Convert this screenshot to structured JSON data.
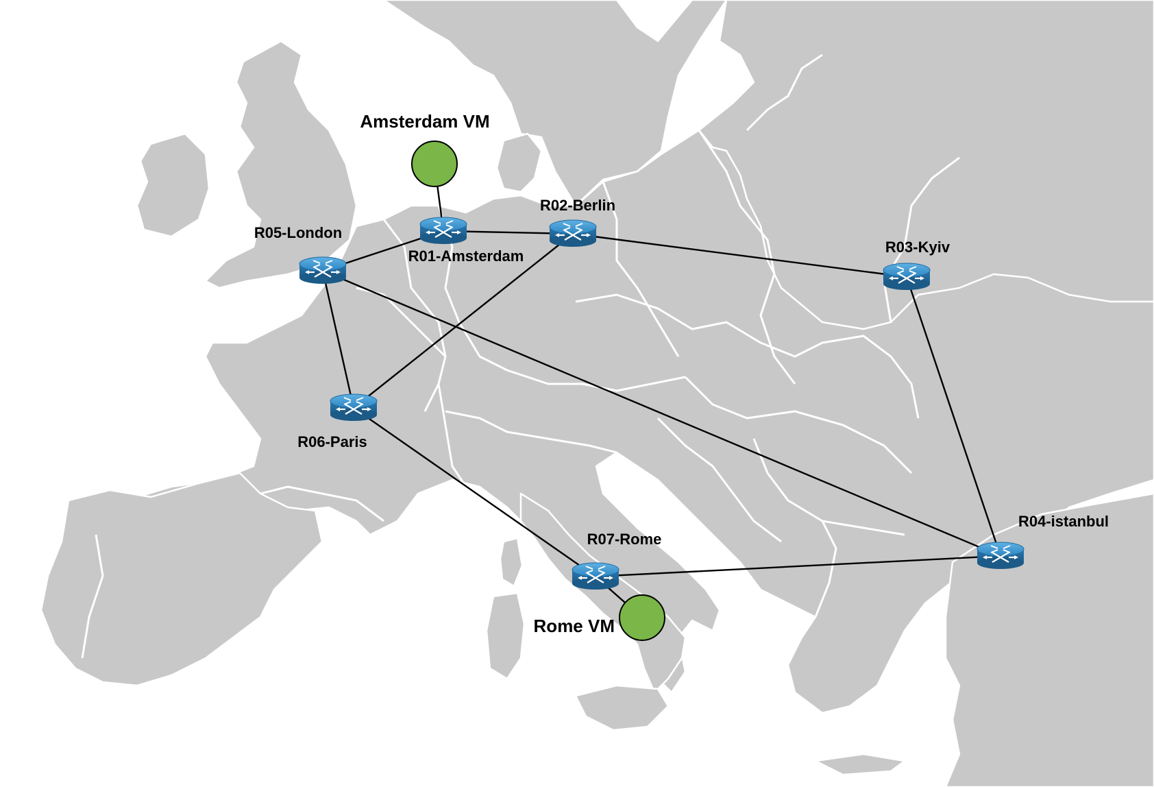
{
  "diagram": {
    "routers": [
      {
        "id": "R01",
        "label": "R01-Amsterdam"
      },
      {
        "id": "R02",
        "label": "R02-Berlin"
      },
      {
        "id": "R03",
        "label": "R03-Kyiv"
      },
      {
        "id": "R04",
        "label": "R04-istanbul"
      },
      {
        "id": "R05",
        "label": "R05-London"
      },
      {
        "id": "R06",
        "label": "R06-Paris"
      },
      {
        "id": "R07",
        "label": "R07-Rome"
      }
    ],
    "vms": [
      {
        "id": "VM-AMS",
        "label": "Amsterdam VM",
        "attached_to": "R01"
      },
      {
        "id": "VM-ROM",
        "label": "Rome VM",
        "attached_to": "R07"
      }
    ],
    "links": [
      [
        "R01",
        "R02"
      ],
      [
        "R01",
        "R05"
      ],
      [
        "R02",
        "R03"
      ],
      [
        "R02",
        "R06"
      ],
      [
        "R03",
        "R04"
      ],
      [
        "R05",
        "R06"
      ],
      [
        "R05",
        "R04"
      ],
      [
        "R06",
        "R07"
      ],
      [
        "R07",
        "R04"
      ],
      [
        "VM-AMS",
        "R01"
      ],
      [
        "VM-ROM",
        "R07"
      ]
    ],
    "colors": {
      "land": "#c8c8c8",
      "borders": "#ffffff",
      "router": "#2f86c2",
      "vm": "#7ab648",
      "link": "#000000"
    },
    "icons": {
      "router": "router-icon",
      "vm": "vm-circle-icon"
    }
  }
}
